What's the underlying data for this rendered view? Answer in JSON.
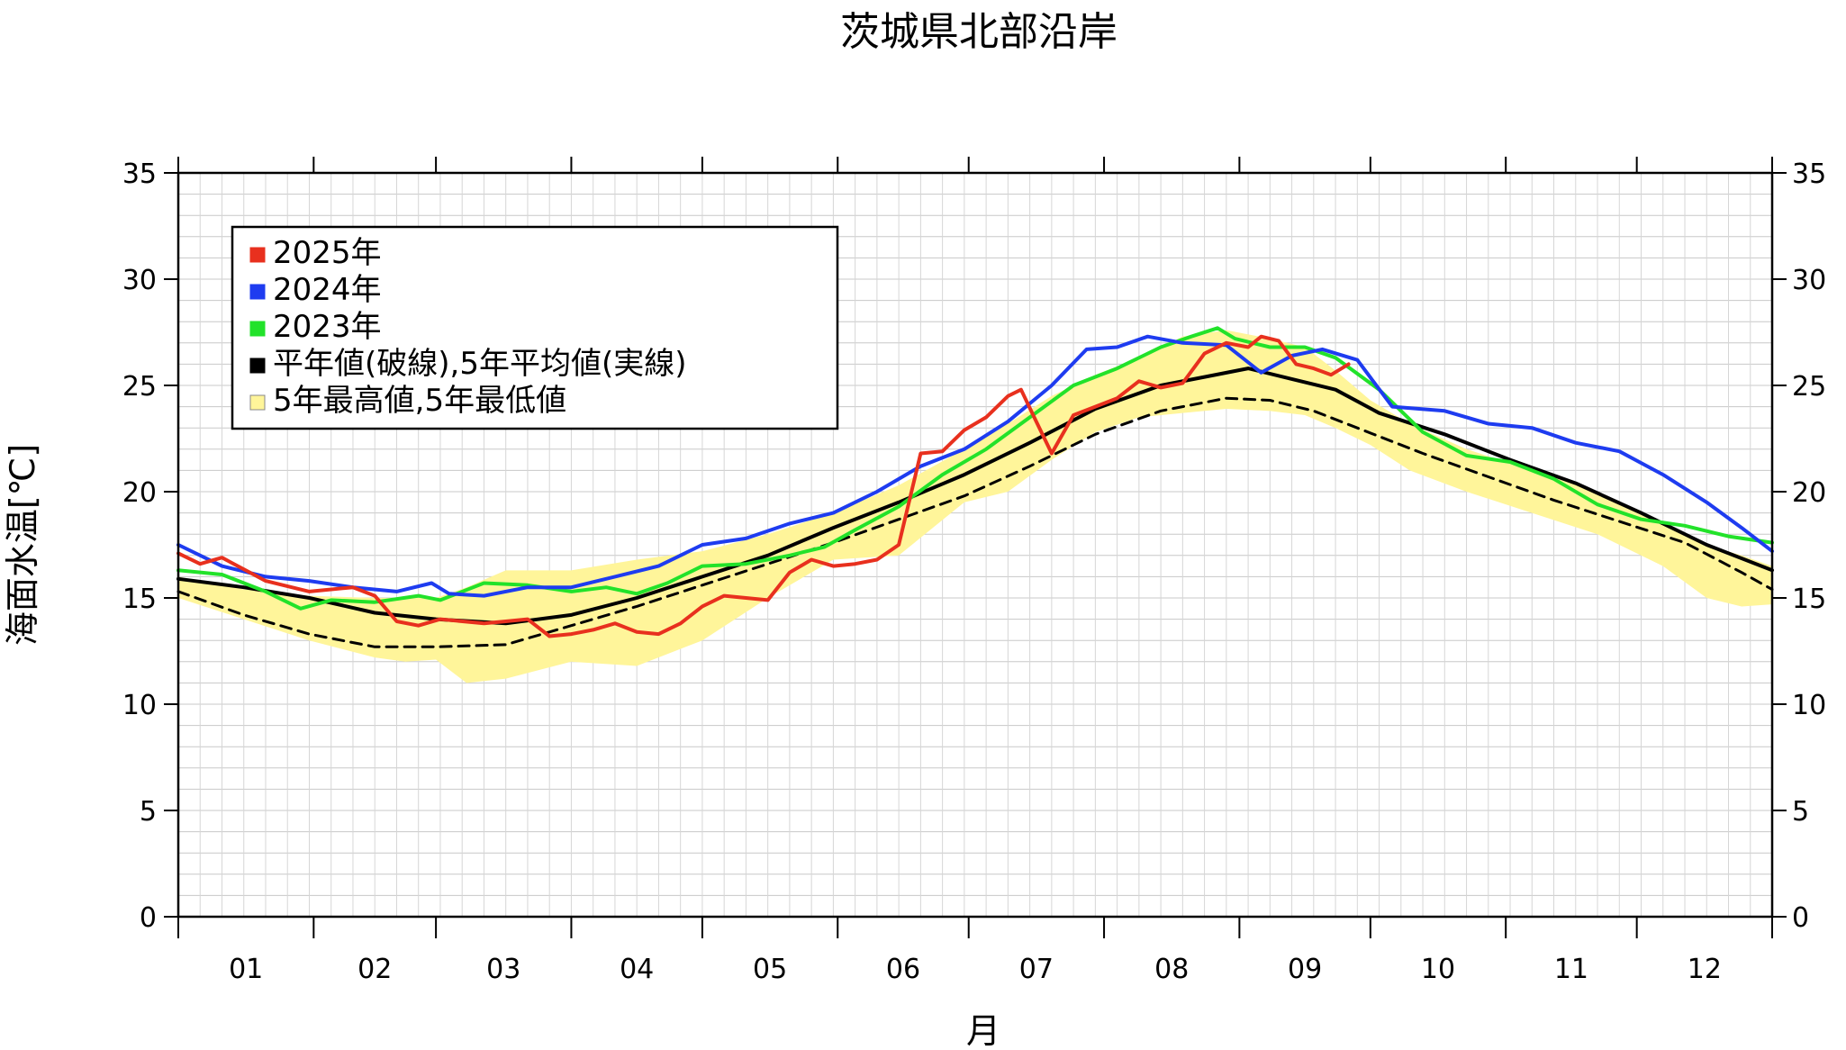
{
  "chart_data": {
    "type": "line",
    "title": "茨城県北部沿岸",
    "xlabel": "月",
    "ylabel": "海面水温[℃]",
    "ylim": [
      0,
      35
    ],
    "yticks": [
      0,
      5,
      10,
      15,
      20,
      25,
      30,
      35
    ],
    "xlim": [
      0,
      365
    ],
    "month_labels": [
      "01",
      "02",
      "03",
      "04",
      "05",
      "06",
      "07",
      "08",
      "09",
      "10",
      "11",
      "12"
    ],
    "grid": true,
    "legend_position": "top-left",
    "legend": [
      {
        "label": "2025年",
        "color": "#e8301e"
      },
      {
        "label": "2024年",
        "color": "#1e3cf0"
      },
      {
        "label": "2023年",
        "color": "#22e22a"
      },
      {
        "label": "平年値(破線),5年平均値(実線)",
        "color": "#000000"
      },
      {
        "label": "5年最高値,5年最低値",
        "color": "#fff59a"
      }
    ],
    "band": {
      "name": "5年最高値,5年最低値",
      "color": "#fff59a",
      "x": [
        0,
        15,
        30,
        45,
        52,
        59,
        66,
        75,
        90,
        105,
        120,
        135,
        150,
        165,
        180,
        190,
        200,
        210,
        220,
        230,
        240,
        250,
        258,
        265,
        273,
        282,
        295,
        310,
        325,
        340,
        350,
        358,
        365
      ],
      "max": [
        16.0,
        15.4,
        15.1,
        15.0,
        15.0,
        15.0,
        15.5,
        16.3,
        16.3,
        16.8,
        17.2,
        18.0,
        19.0,
        20.3,
        22.0,
        23.2,
        24.5,
        25.5,
        26.3,
        27.3,
        27.6,
        27.2,
        26.8,
        25.7,
        24.3,
        23.2,
        22.0,
        21.0,
        20.0,
        18.5,
        17.5,
        17.0,
        16.5
      ],
      "min": [
        15.0,
        14.0,
        13.0,
        12.2,
        12.0,
        12.1,
        11.0,
        11.2,
        12.0,
        11.8,
        13.0,
        15.0,
        16.8,
        17.0,
        19.5,
        20.0,
        21.5,
        22.8,
        23.5,
        23.7,
        23.9,
        23.8,
        23.6,
        23.0,
        22.2,
        21.0,
        20.0,
        19.0,
        18.0,
        16.5,
        15.0,
        14.6,
        14.7
      ]
    },
    "series": [
      {
        "name": "平年値",
        "color": "#000000",
        "style": "dashed",
        "x": [
          0,
          15,
          30,
          45,
          59,
          75,
          90,
          105,
          120,
          135,
          150,
          165,
          180,
          195,
          210,
          225,
          240,
          250,
          260,
          270,
          285,
          300,
          315,
          330,
          345,
          358,
          365
        ],
        "y": [
          15.3,
          14.2,
          13.3,
          12.7,
          12.7,
          12.8,
          13.7,
          14.6,
          15.6,
          16.6,
          17.6,
          18.7,
          19.8,
          21.2,
          22.7,
          23.8,
          24.4,
          24.3,
          23.8,
          23.0,
          21.8,
          20.7,
          19.6,
          18.6,
          17.6,
          16.2,
          15.4
        ]
      },
      {
        "name": "5年平均値",
        "color": "#000000",
        "style": "solid",
        "x": [
          0,
          15,
          30,
          45,
          59,
          75,
          90,
          105,
          120,
          135,
          150,
          165,
          180,
          195,
          210,
          225,
          235,
          245,
          255,
          265,
          275,
          290,
          305,
          320,
          335,
          350,
          365
        ],
        "y": [
          15.9,
          15.5,
          15.0,
          14.3,
          14.0,
          13.8,
          14.2,
          15.0,
          16.0,
          17.0,
          18.3,
          19.5,
          20.8,
          22.3,
          23.9,
          25.0,
          25.4,
          25.8,
          25.3,
          24.8,
          23.7,
          22.7,
          21.5,
          20.4,
          19.0,
          17.5,
          16.3
        ]
      },
      {
        "name": "2023年",
        "color": "#22e22a",
        "style": "solid",
        "x": [
          0,
          10,
          20,
          28,
          35,
          45,
          55,
          60,
          70,
          80,
          90,
          98,
          105,
          112,
          120,
          130,
          140,
          148,
          155,
          165,
          175,
          185,
          195,
          205,
          215,
          225,
          232,
          238,
          242,
          250,
          258,
          265,
          275,
          285,
          295,
          305,
          315,
          325,
          335,
          345,
          355,
          365
        ],
        "y": [
          16.3,
          16.1,
          15.3,
          14.5,
          14.9,
          14.8,
          15.1,
          14.9,
          15.7,
          15.6,
          15.3,
          15.5,
          15.2,
          15.7,
          16.5,
          16.6,
          17.0,
          17.4,
          18.2,
          19.3,
          20.8,
          22.0,
          23.5,
          25.0,
          25.8,
          26.8,
          27.3,
          27.7,
          27.2,
          26.8,
          26.8,
          26.3,
          24.8,
          22.8,
          21.7,
          21.4,
          20.6,
          19.4,
          18.7,
          18.4,
          17.9,
          17.6
        ]
      },
      {
        "name": "2024年",
        "color": "#1e3cf0",
        "style": "solid",
        "x": [
          0,
          10,
          20,
          30,
          40,
          50,
          58,
          62,
          70,
          80,
          90,
          100,
          110,
          120,
          130,
          140,
          150,
          160,
          170,
          180,
          190,
          200,
          208,
          215,
          222,
          230,
          240,
          248,
          255,
          262,
          270,
          278,
          290,
          300,
          310,
          320,
          330,
          340,
          350,
          358,
          365
        ],
        "y": [
          17.5,
          16.5,
          16.0,
          15.8,
          15.5,
          15.3,
          15.7,
          15.2,
          15.1,
          15.5,
          15.5,
          16.0,
          16.5,
          17.5,
          17.8,
          18.5,
          19.0,
          20.0,
          21.2,
          22.0,
          23.3,
          25.0,
          26.7,
          26.8,
          27.3,
          27.0,
          26.9,
          25.6,
          26.4,
          26.7,
          26.2,
          24.0,
          23.8,
          23.2,
          23.0,
          22.3,
          21.9,
          20.8,
          19.5,
          18.3,
          17.2
        ]
      },
      {
        "name": "2025年",
        "color": "#e8301e",
        "style": "solid",
        "x": [
          0,
          5,
          10,
          20,
          30,
          40,
          45,
          50,
          55,
          60,
          70,
          75,
          80,
          85,
          90,
          95,
          100,
          105,
          110,
          115,
          120,
          125,
          130,
          135,
          140,
          145,
          150,
          155,
          160,
          165,
          170,
          175,
          180,
          185,
          190,
          193,
          196,
          200,
          205,
          210,
          215,
          220,
          225,
          230,
          235,
          240,
          245,
          248,
          252,
          256,
          260,
          264,
          268
        ],
        "y": [
          17.1,
          16.6,
          16.9,
          15.8,
          15.3,
          15.5,
          15.1,
          13.9,
          13.7,
          14.0,
          13.8,
          13.9,
          14.0,
          13.2,
          13.3,
          13.5,
          13.8,
          13.4,
          13.3,
          13.8,
          14.6,
          15.1,
          15.0,
          14.9,
          16.2,
          16.8,
          16.5,
          16.6,
          16.8,
          17.5,
          21.8,
          21.9,
          22.9,
          23.5,
          24.5,
          24.8,
          23.5,
          21.8,
          23.6,
          24.0,
          24.4,
          25.2,
          24.9,
          25.1,
          26.5,
          27.0,
          26.8,
          27.3,
          27.1,
          26.0,
          25.8,
          25.5,
          26.0
        ]
      }
    ]
  }
}
